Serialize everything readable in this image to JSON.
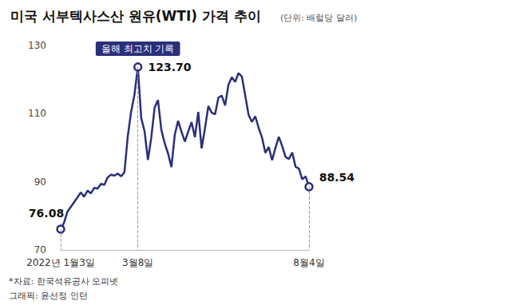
{
  "chart_data": {
    "type": "line",
    "title": "미국 서부텍사스산 원유(WTI) 가격 추이",
    "subtitle": "(단위: 배럴당 달러)",
    "notes": [
      "*자료: 한국석유공사 오피넷",
      "그래픽: 윤선정 인턴"
    ],
    "annotations": [
      {
        "text": "올해 최고치 기록",
        "x": "3월8일"
      }
    ],
    "categories": [
      "2022년 1월3일",
      null,
      null,
      null,
      null,
      null,
      null,
      null,
      null,
      null,
      null,
      null,
      null,
      null,
      null,
      null,
      null,
      null,
      null,
      null,
      null,
      null,
      null,
      "3월8일",
      null,
      null,
      null,
      null,
      null,
      null,
      null,
      null,
      null,
      null,
      null,
      null,
      null,
      null,
      null,
      null,
      null,
      null,
      null,
      null,
      null,
      null,
      null,
      null,
      null,
      null,
      null,
      null,
      null,
      null,
      null,
      null,
      null,
      null,
      null,
      null,
      null,
      null,
      null,
      null,
      null,
      null,
      null,
      null,
      null,
      null,
      null,
      null,
      null,
      null,
      "8월4일"
    ],
    "values": [
      76.08,
      78.0,
      81.2,
      82.6,
      84.0,
      85.4,
      86.9,
      85.6,
      87.4,
      86.6,
      88.2,
      88.0,
      89.4,
      89.1,
      91.3,
      92.1,
      91.8,
      92.4,
      91.6,
      92.8,
      103.4,
      110.6,
      115.7,
      123.7,
      108.7,
      104.8,
      96.4,
      103.0,
      111.8,
      114.0,
      105.2,
      101.3,
      98.3,
      94.3,
      103.8,
      107.9,
      104.7,
      101.8,
      104.7,
      107.5,
      103.1,
      110.5,
      99.8,
      105.7,
      112.2,
      110.3,
      109.8,
      114.7,
      115.3,
      112.4,
      118.5,
      120.7,
      119.3,
      121.9,
      120.9,
      115.3,
      109.6,
      107.6,
      109.2,
      105.8,
      103.0,
      98.5,
      100.2,
      96.3,
      99.9,
      103.2,
      100.5,
      97.3,
      96.7,
      98.6,
      94.4,
      93.9,
      90.7,
      91.6,
      88.54
    ],
    "value_labels": [
      "76.08",
      null,
      null,
      null,
      null,
      null,
      null,
      null,
      null,
      null,
      null,
      null,
      null,
      null,
      null,
      null,
      null,
      null,
      null,
      null,
      null,
      null,
      null,
      "123.70",
      null,
      null,
      null,
      null,
      null,
      null,
      null,
      null,
      null,
      null,
      null,
      null,
      null,
      null,
      null,
      null,
      null,
      null,
      null,
      null,
      null,
      null,
      null,
      null,
      null,
      null,
      null,
      null,
      null,
      null,
      null,
      null,
      null,
      null,
      null,
      null,
      null,
      null,
      null,
      null,
      null,
      null,
      null,
      null,
      null,
      null,
      null,
      null,
      null,
      null,
      "88.54"
    ],
    "color": "#2b2f7a",
    "marker": "circle",
    "data_labels": true,
    "ylim": [
      70,
      130
    ],
    "yticks": [
      70,
      90,
      110,
      130
    ],
    "grid": false
  }
}
